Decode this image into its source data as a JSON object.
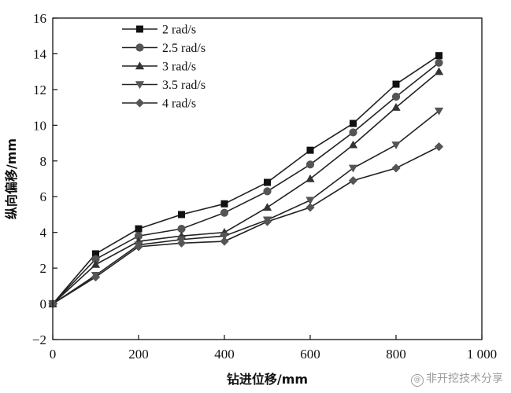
{
  "chart_data": {
    "type": "line",
    "xlabel": "钻进位移/mm",
    "ylabel": "纵向偏移/mm",
    "xlim": [
      0,
      1000
    ],
    "ylim": [
      -2,
      16
    ],
    "xticks": [
      0,
      200,
      400,
      600,
      800,
      1000
    ],
    "xtick_labels": [
      "0",
      "200",
      "400",
      "600",
      "800",
      "1 000"
    ],
    "yticks": [
      -2,
      0,
      2,
      4,
      6,
      8,
      10,
      12,
      14,
      16
    ],
    "ytick_labels": [
      "−2",
      "0",
      "2",
      "4",
      "6",
      "8",
      "10",
      "12",
      "14",
      "16"
    ],
    "x": [
      0,
      100,
      200,
      300,
      400,
      500,
      600,
      700,
      800,
      900
    ],
    "grid": false,
    "legend_position": "top-left",
    "series": [
      {
        "name": "2 rad/s",
        "marker": "square",
        "values": [
          0,
          2.8,
          4.2,
          5.0,
          5.6,
          6.8,
          8.6,
          10.1,
          12.3,
          13.9
        ]
      },
      {
        "name": "2.5 rad/s",
        "marker": "circle",
        "values": [
          0,
          2.5,
          3.8,
          4.2,
          5.1,
          6.3,
          7.8,
          9.6,
          11.6,
          13.5
        ]
      },
      {
        "name": "3 rad/s",
        "marker": "triangle-up",
        "values": [
          0,
          2.2,
          3.5,
          3.8,
          4.0,
          5.4,
          7.0,
          8.9,
          11.0,
          13.0
        ]
      },
      {
        "name": "3.5 rad/s",
        "marker": "triangle-down",
        "values": [
          0,
          1.6,
          3.3,
          3.6,
          3.8,
          4.7,
          5.8,
          7.6,
          8.9,
          10.8
        ]
      },
      {
        "name": "4 rad/s",
        "marker": "diamond",
        "values": [
          0,
          1.5,
          3.2,
          3.4,
          3.5,
          4.6,
          5.4,
          6.9,
          7.6,
          8.8
        ]
      }
    ],
    "line_color": "#222222",
    "marker_colors": [
      "#111111",
      "#555555",
      "#333333",
      "#555555",
      "#555555"
    ]
  },
  "watermark": {
    "icon": "at-icon",
    "text": "@非开挖技术分享"
  }
}
